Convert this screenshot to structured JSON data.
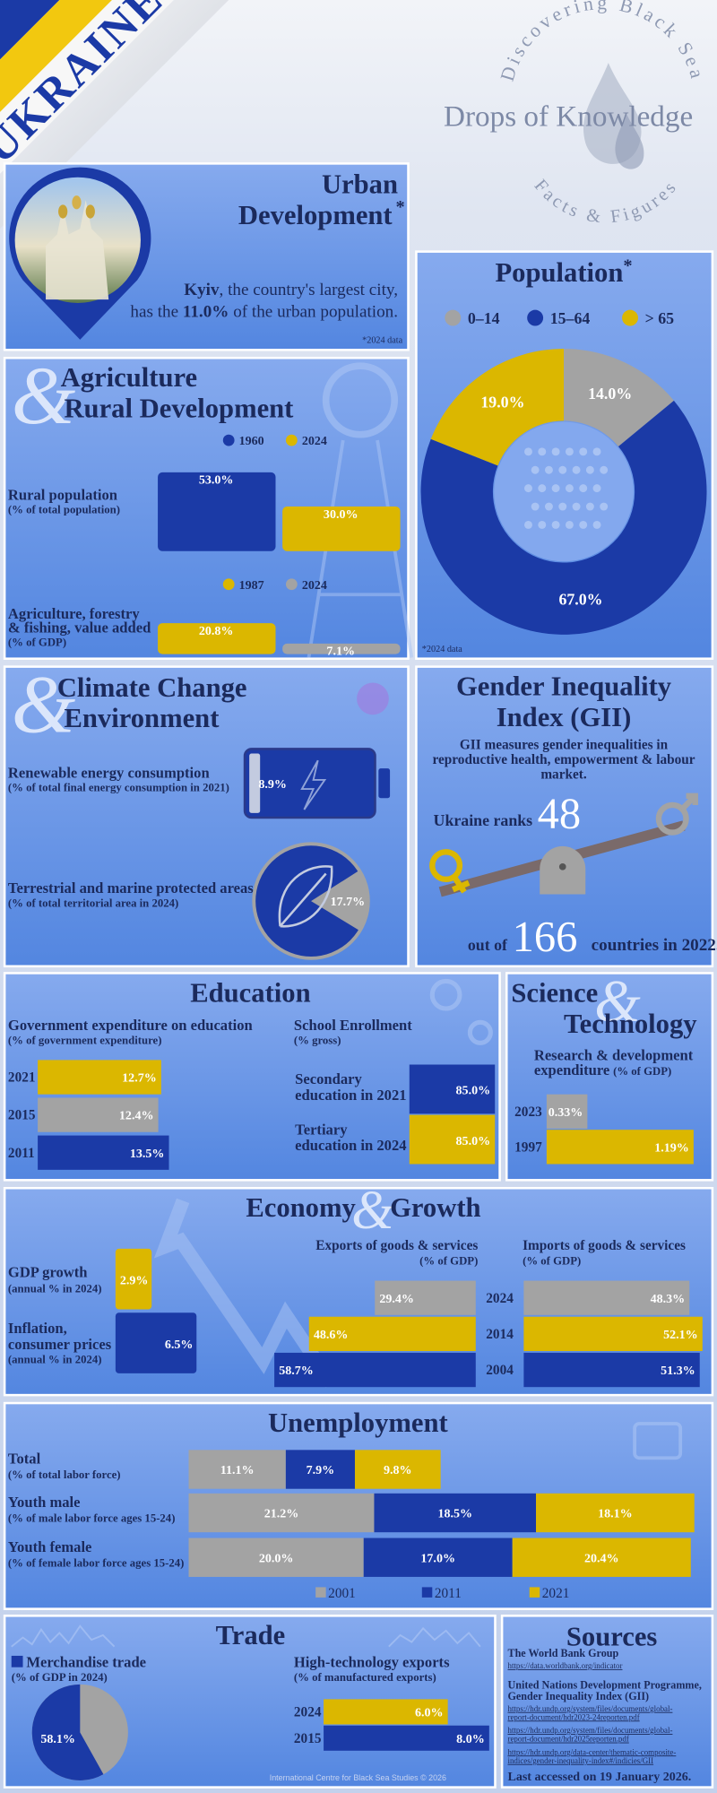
{
  "header": {
    "banner": "UKRAINE",
    "arc_top": "Discovering Black Sea",
    "title": "Drops of Knowledge",
    "arc_bottom": "Facts & Figures"
  },
  "urban": {
    "title": [
      "Urban",
      "Development"
    ],
    "mark": "*",
    "city": "Kyiv",
    "text_1": ", the country's largest city,",
    "text_2": [
      "has the ",
      "11.0%",
      " of the urban population."
    ],
    "note": "*2024 data"
  },
  "population": {
    "title": "Population",
    "mark": "*",
    "categories": [
      "0–14",
      "15–64",
      "> 65"
    ],
    "values": [
      14.0,
      67.0,
      19.0
    ],
    "value_labels": [
      "14.0%",
      "67.0%",
      "19.0%"
    ],
    "colors": [
      "#a3a3a3",
      "#1b3aa6",
      "#dbb700"
    ],
    "note": "*2024 data"
  },
  "agriculture": {
    "amp": "&",
    "title": [
      "Agriculture",
      "Rural Development"
    ],
    "charts": [
      {
        "label": [
          "Rural population"
        ],
        "sublabel": "(% of total population)",
        "series": [
          {
            "name": "1960",
            "color": "#1b3aa6",
            "value": 53.0,
            "value_label": "53.0%"
          },
          {
            "name": "2024",
            "color": "#dbb700",
            "value": 30.0,
            "value_label": "30.0%"
          }
        ]
      },
      {
        "label": [
          "Agriculture, forestry",
          "& fishing, value added"
        ],
        "sublabel": "(% of GDP)",
        "series": [
          {
            "name": "1987",
            "color": "#dbb700",
            "value": 20.8,
            "value_label": "20.8%"
          },
          {
            "name": "2024",
            "color": "#a3a3a3",
            "value": 7.1,
            "value_label": "7.1%"
          }
        ]
      }
    ]
  },
  "climate": {
    "amp": "&",
    "title": [
      "Climate Change",
      "Environment"
    ],
    "items": [
      {
        "label": "Renewable energy consumption",
        "sublabel": "(% of total final energy consumption in 2021)",
        "value": 8.9,
        "value_label": "8.9%"
      },
      {
        "label": "Terrestrial and marine protected areas",
        "sublabel": "(% of total territorial area in 2024)",
        "value": 17.7,
        "value_label": "17.7%"
      }
    ]
  },
  "gii": {
    "title": [
      "Gender Inequality",
      "Index (GII)"
    ],
    "description": [
      "GII measures gender inequalities in",
      "reproductive health, empowerment & labour",
      "market."
    ],
    "rank_pre": "Ukraine ranks",
    "rank": "48",
    "out_pre": "out of",
    "total": "166",
    "out_post": "countries in 2022."
  },
  "education": {
    "title": "Education",
    "expenditure": {
      "label": "Government expenditure on education",
      "sublabel": "(% of government expenditure)",
      "categories": [
        "2021",
        "2015",
        "2011"
      ],
      "values": [
        12.7,
        12.4,
        13.5
      ],
      "value_labels": [
        "12.7%",
        "12.4%",
        "13.5%"
      ],
      "colors": [
        "#dbb700",
        "#a3a3a3",
        "#1b3aa6"
      ]
    },
    "enrollment": {
      "label": "School Enrollment",
      "sublabel": "(% gross)",
      "items": [
        {
          "lines": [
            "Secondary",
            "education in 2021"
          ],
          "value": 85.0,
          "value_label": "85.0%",
          "color": "#1b3aa6"
        },
        {
          "lines": [
            "Tertiary",
            "education in 2024"
          ],
          "value": 85.0,
          "value_label": "85.0%",
          "color": "#dbb700"
        }
      ]
    }
  },
  "science": {
    "title": [
      "Science",
      "Technology"
    ],
    "amp": "&",
    "label": [
      "Research & development",
      "expenditure"
    ],
    "sublabel": "(% of GDP)",
    "categories": [
      "2023",
      "1997"
    ],
    "values": [
      0.33,
      1.19
    ],
    "value_labels": [
      "0.33%",
      "1.19%"
    ],
    "colors": [
      "#a3a3a3",
      "#dbb700"
    ]
  },
  "economy": {
    "title": [
      "Economy",
      "Growth"
    ],
    "amp": "&",
    "indicators": [
      {
        "label": [
          "GDP growth"
        ],
        "sublabel": "(annual % in 2024)",
        "value": 2.9,
        "value_label": "2.9%",
        "color": "#dbb700"
      },
      {
        "label": [
          "Inflation,",
          "consumer prices"
        ],
        "sublabel": "(annual % in 2024)",
        "value": 6.5,
        "value_label": "6.5%",
        "color": "#1b3aa6"
      }
    ],
    "years": [
      "2024",
      "2014",
      "2004"
    ],
    "colors": [
      "#a3a3a3",
      "#dbb700",
      "#1b3aa6"
    ],
    "exports": {
      "label": "Exports of goods & services",
      "sublabel": "(% of GDP)",
      "values": [
        29.4,
        48.6,
        58.7
      ],
      "value_labels": [
        "29.4%",
        "48.6%",
        "58.7%"
      ]
    },
    "imports": {
      "label": "Imports of goods & services",
      "sublabel": "(% of GDP)",
      "values": [
        48.3,
        52.1,
        51.3
      ],
      "value_labels": [
        "48.3%",
        "52.1%",
        "51.3%"
      ]
    }
  },
  "unemployment": {
    "title": "Unemployment",
    "categories": [
      "Total",
      "Youth male",
      "Youth female"
    ],
    "sublabels": [
      "(% of total labor force)",
      "(% of male labor force ages 15-24)",
      "(% of female labor force ages 15-24)"
    ],
    "series": [
      {
        "name": "2001",
        "color": "#a3a3a3",
        "values": [
          11.1,
          21.2,
          20.0
        ],
        "value_labels": [
          "11.1%",
          "21.2%",
          "20.0%"
        ]
      },
      {
        "name": "2011",
        "color": "#1b3aa6",
        "values": [
          7.9,
          18.5,
          17.0
        ],
        "value_labels": [
          "7.9%",
          "18.5%",
          "17.0%"
        ]
      },
      {
        "name": "2021",
        "color": "#dbb700",
        "values": [
          9.8,
          18.1,
          20.4
        ],
        "value_labels": [
          "9.8%",
          "18.1%",
          "20.4%"
        ]
      }
    ]
  },
  "trade": {
    "title": "Trade",
    "merchandise": {
      "label": "Merchandise trade",
      "sublabel": "(% of GDP in 2024)",
      "value": 58.1,
      "value_label": "58.1%",
      "color": "#1b3aa6"
    },
    "hightech": {
      "label": "High-technology exports",
      "sublabel": "(% of manufactured exports)",
      "categories": [
        "2024",
        "2015"
      ],
      "values": [
        6.0,
        8.0
      ],
      "value_labels": [
        "6.0%",
        "8.0%"
      ],
      "colors": [
        "#dbb700",
        "#1b3aa6"
      ]
    },
    "footer": "International Centre for Black Sea Studies © 2026"
  },
  "sources": {
    "title": "Sources",
    "entries": [
      {
        "org": [
          "The World Bank Group"
        ],
        "links": [
          [
            "https://data.worldbank.org/indicator"
          ]
        ]
      },
      {
        "org": [
          "United Nations Development Programme,",
          "Gender Inequality Index (GII)"
        ],
        "links": [
          [
            "https://hdr.undp.org/system/files/documents/global-",
            "report-document/hdr2023-24reporten.pdf"
          ],
          [
            "https://hdr.undp.org/system/files/documents/global-",
            "report-document/hdr2025reporten.pdf"
          ],
          [
            "https://hdr.undp.org/data-center/thematic-composite-",
            "indices/gender-inequality-index#/indicies/GII"
          ]
        ]
      }
    ],
    "accessed": "Last accessed on 19 January 2026."
  }
}
